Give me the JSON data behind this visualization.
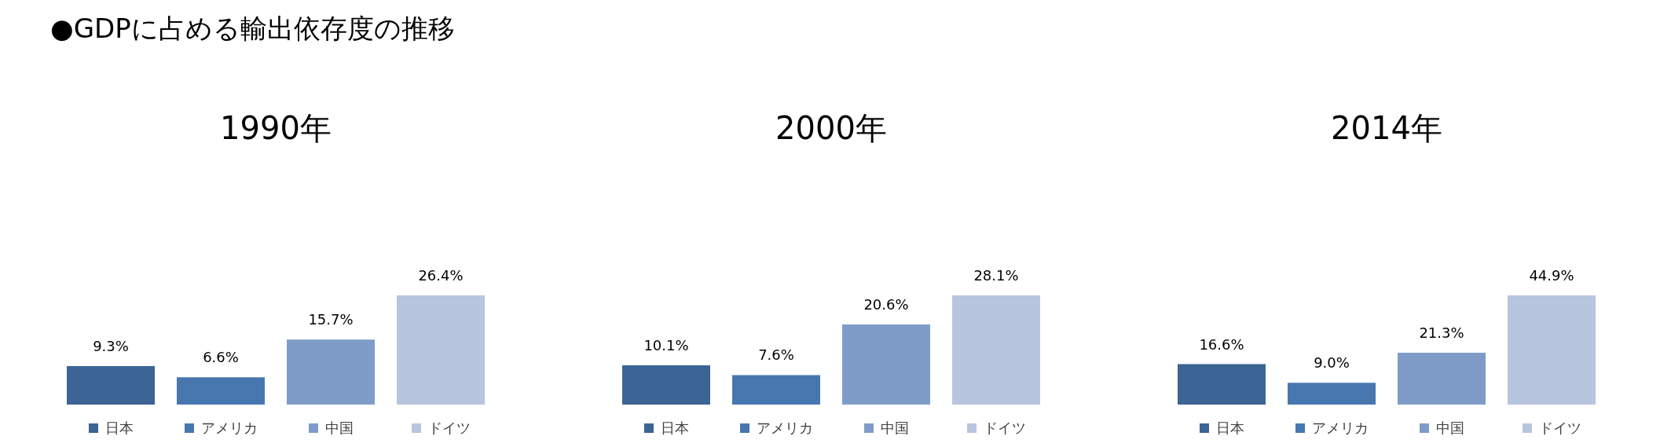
{
  "chart_data": [
    {
      "type": "bar",
      "title": "1990年",
      "annotations": [
        "●GDPに占める輸出依存度の推移"
      ],
      "categories": [
        null
      ],
      "series": [
        {
          "name": "日本",
          "color": "#3c6494",
          "values": [
            9.3
          ],
          "value_labels": [
            "9.3%"
          ]
        },
        {
          "name": "アメリカ",
          "color": "#4877b0",
          "values": [
            6.6
          ],
          "value_labels": [
            "6.6%"
          ]
        },
        {
          "name": "中国",
          "color": "#7f9cc8",
          "values": [
            15.7
          ],
          "value_labels": [
            "15.7%"
          ]
        },
        {
          "name": "ドイツ",
          "color": "#b8c5df",
          "values": [
            26.4
          ],
          "value_labels": [
            "26.4%"
          ]
        }
      ],
      "legend": "bottom",
      "tick_labels": false
    },
    {
      "type": "bar",
      "title": "2000年",
      "categories": [
        null
      ],
      "series": [
        {
          "name": "日本",
          "color": "#3c6494",
          "values": [
            10.1
          ],
          "value_labels": [
            "10.1%"
          ]
        },
        {
          "name": "アメリカ",
          "color": "#4877b0",
          "values": [
            7.6
          ],
          "value_labels": [
            "7.6%"
          ]
        },
        {
          "name": "中国",
          "color": "#7f9cc8",
          "values": [
            20.6
          ],
          "value_labels": [
            "20.6%"
          ]
        },
        {
          "name": "ドイツ",
          "color": "#b8c5df",
          "values": [
            28.1
          ],
          "value_labels": [
            "28.1%"
          ]
        }
      ],
      "legend": "bottom",
      "tick_labels": false
    },
    {
      "type": "bar",
      "title": "2014年",
      "categories": [
        null
      ],
      "series": [
        {
          "name": "日本",
          "color": "#3c6494",
          "values": [
            16.6
          ],
          "value_labels": [
            "16.6%"
          ]
        },
        {
          "name": "アメリカ",
          "color": "#4877b0",
          "values": [
            9.0
          ],
          "value_labels": [
            "9.0%"
          ]
        },
        {
          "name": "中国",
          "color": "#7f9cc8",
          "values": [
            21.3
          ],
          "value_labels": [
            "21.3%"
          ]
        },
        {
          "name": "ドイツ",
          "color": "#b8c5df",
          "values": [
            44.9
          ],
          "value_labels": [
            "44.9%"
          ]
        }
      ],
      "legend": "bottom",
      "tick_labels": false
    }
  ]
}
